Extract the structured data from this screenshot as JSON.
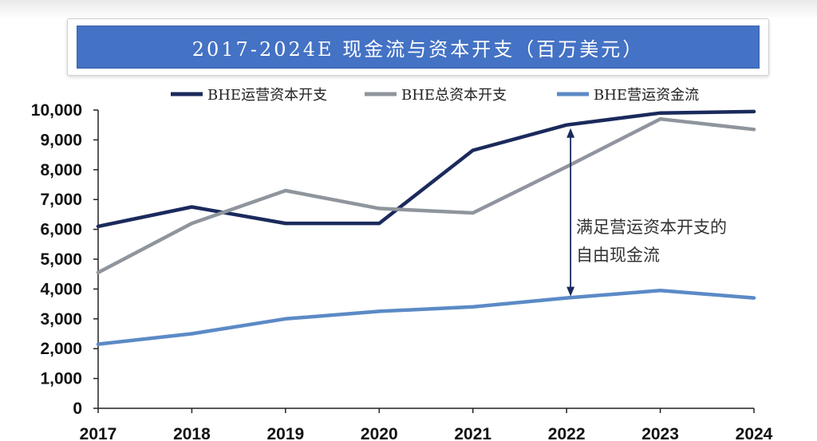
{
  "chart_data": {
    "type": "line",
    "title": "2017-2024E 现金流与资本开支（百万美元）",
    "categories": [
      "2017",
      "2018",
      "2019",
      "2020",
      "2021",
      "2022",
      "2023",
      "2024"
    ],
    "series": [
      {
        "name": "BHE运营资本开支",
        "color": "#1b2a5c",
        "values": [
          6100,
          6750,
          6200,
          6200,
          8650,
          9500,
          9900,
          9950
        ]
      },
      {
        "name": "BHE总资本开支",
        "color": "#8f959c",
        "values": [
          4550,
          6200,
          7300,
          6700,
          6550,
          8100,
          9700,
          9350
        ]
      },
      {
        "name": "BHE营运资金流",
        "color": "#5b8ac6",
        "values": [
          2150,
          2500,
          3000,
          3250,
          3400,
          3700,
          3950,
          3700
        ]
      }
    ],
    "ylim": [
      0,
      10000
    ],
    "yticks": [
      "0",
      "1,000",
      "2,000",
      "3,000",
      "4,000",
      "5,000",
      "6,000",
      "7,000",
      "8,000",
      "9,000",
      "10,000"
    ],
    "grid": false,
    "legend_position": "top",
    "annotation": {
      "text_line1": "满足营运资本开支的",
      "text_line2": "自由现金流",
      "category": "2022",
      "from_value": 3700,
      "to_value": 9500
    }
  }
}
